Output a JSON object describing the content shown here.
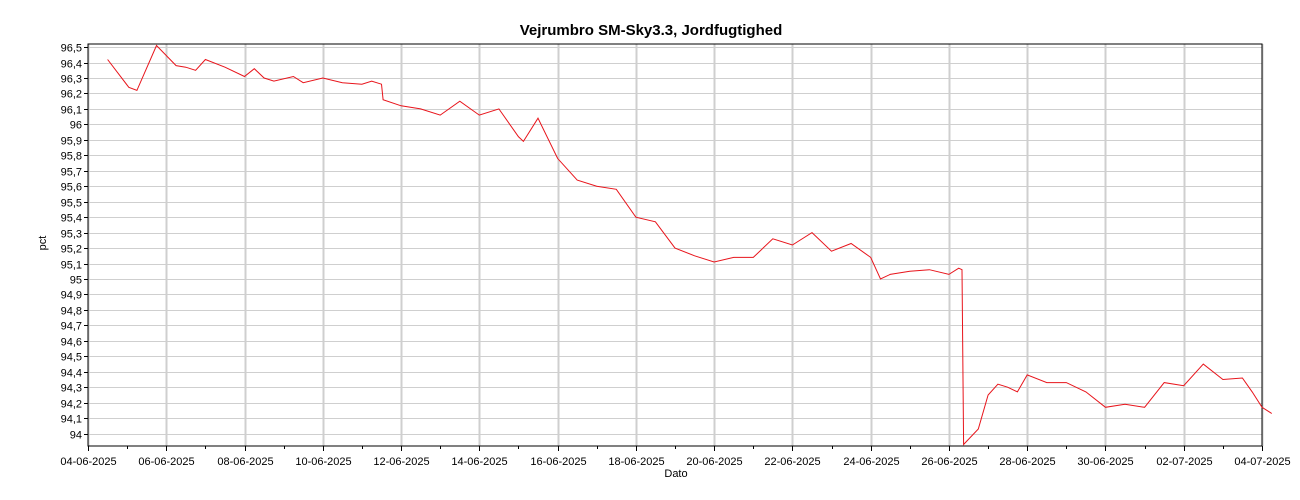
{
  "chart_data": {
    "type": "line",
    "title": "Vejrumbro SM-Sky3.3, Jordfugtighed",
    "xlabel": "Dato",
    "ylabel": "pct",
    "grid": true,
    "legend": "none",
    "colors": {
      "line": "#e8141b",
      "grid": "#cfcfcf",
      "axis": "#000000"
    },
    "xlim": [
      "2025-06-04",
      "2025-07-04"
    ],
    "ylim": [
      93.92,
      96.52
    ],
    "y_ticks": [
      94,
      94.1,
      94.2,
      94.3,
      94.4,
      94.5,
      94.6,
      94.7,
      94.8,
      94.9,
      95,
      95.1,
      95.2,
      95.3,
      95.4,
      95.5,
      95.6,
      95.7,
      95.8,
      95.9,
      96,
      96.1,
      96.2,
      96.3,
      96.4,
      96.5
    ],
    "y_tick_labels": [
      "94",
      "94,1",
      "94,2",
      "94,3",
      "94,4",
      "94,5",
      "94,6",
      "94,7",
      "94,8",
      "94,9",
      "95",
      "95,1",
      "95,2",
      "95,3",
      "95,4",
      "95,5",
      "95,6",
      "95,7",
      "95,8",
      "95,9",
      "96",
      "96,1",
      "96,2",
      "96,3",
      "96,4",
      "96,5"
    ],
    "x_ticks": [
      "2025-06-04",
      "2025-06-06",
      "2025-06-08",
      "2025-06-10",
      "2025-06-12",
      "2025-06-14",
      "2025-06-16",
      "2025-06-18",
      "2025-06-20",
      "2025-06-22",
      "2025-06-24",
      "2025-06-26",
      "2025-06-28",
      "2025-06-30",
      "2025-07-02",
      "2025-07-04"
    ],
    "x_tick_labels": [
      "04-06-2025",
      "06-06-2025",
      "08-06-2025",
      "10-06-2025",
      "12-06-2025",
      "14-06-2025",
      "16-06-2025",
      "18-06-2025",
      "20-06-2025",
      "22-06-2025",
      "24-06-2025",
      "26-06-2025",
      "28-06-2025",
      "30-06-2025",
      "02-07-2025",
      "04-07-2025"
    ],
    "series": [
      {
        "points": [
          [
            "2025-06-04 12:00",
            96.42
          ],
          [
            "2025-06-05 01:00",
            96.24
          ],
          [
            "2025-06-05 06:00",
            96.22
          ],
          [
            "2025-06-05 18:00",
            96.51
          ],
          [
            "2025-06-06 06:00",
            96.38
          ],
          [
            "2025-06-06 12:00",
            96.37
          ],
          [
            "2025-06-06 18:00",
            96.35
          ],
          [
            "2025-06-07 00:00",
            96.42
          ],
          [
            "2025-06-07 12:00",
            96.37
          ],
          [
            "2025-06-08 00:00",
            96.31
          ],
          [
            "2025-06-08 06:00",
            96.36
          ],
          [
            "2025-06-08 12:00",
            96.3
          ],
          [
            "2025-06-08 18:00",
            96.28
          ],
          [
            "2025-06-09 06:00",
            96.31
          ],
          [
            "2025-06-09 12:00",
            96.27
          ],
          [
            "2025-06-10 00:00",
            96.3
          ],
          [
            "2025-06-10 12:00",
            96.27
          ],
          [
            "2025-06-11 00:00",
            96.26
          ],
          [
            "2025-06-11 06:00",
            96.28
          ],
          [
            "2025-06-11 12:00",
            96.26
          ],
          [
            "2025-06-11 13:00",
            96.16
          ],
          [
            "2025-06-12 00:00",
            96.12
          ],
          [
            "2025-06-12 12:00",
            96.1
          ],
          [
            "2025-06-13 00:00",
            96.06
          ],
          [
            "2025-06-13 12:00",
            96.15
          ],
          [
            "2025-06-14 00:00",
            96.06
          ],
          [
            "2025-06-14 12:00",
            96.1
          ],
          [
            "2025-06-15 00:00",
            95.92
          ],
          [
            "2025-06-15 03:00",
            95.89
          ],
          [
            "2025-06-15 12:00",
            96.04
          ],
          [
            "2025-06-16 00:00",
            95.78
          ],
          [
            "2025-06-16 12:00",
            95.64
          ],
          [
            "2025-06-17 00:00",
            95.6
          ],
          [
            "2025-06-17 12:00",
            95.58
          ],
          [
            "2025-06-18 00:00",
            95.4
          ],
          [
            "2025-06-18 12:00",
            95.37
          ],
          [
            "2025-06-19 00:00",
            95.2
          ],
          [
            "2025-06-19 12:00",
            95.15
          ],
          [
            "2025-06-20 00:00",
            95.11
          ],
          [
            "2025-06-20 12:00",
            95.14
          ],
          [
            "2025-06-21 00:00",
            95.14
          ],
          [
            "2025-06-21 12:00",
            95.26
          ],
          [
            "2025-06-22 00:00",
            95.22
          ],
          [
            "2025-06-22 12:00",
            95.3
          ],
          [
            "2025-06-23 00:00",
            95.18
          ],
          [
            "2025-06-23 12:00",
            95.23
          ],
          [
            "2025-06-24 00:00",
            95.14
          ],
          [
            "2025-06-24 06:00",
            95.0
          ],
          [
            "2025-06-24 12:00",
            95.03
          ],
          [
            "2025-06-25 00:00",
            95.05
          ],
          [
            "2025-06-25 12:00",
            95.06
          ],
          [
            "2025-06-26 00:00",
            95.03
          ],
          [
            "2025-06-26 06:00",
            95.07
          ],
          [
            "2025-06-26 08:00",
            95.06
          ],
          [
            "2025-06-26 09:00",
            93.93
          ],
          [
            "2025-06-26 18:00",
            94.03
          ],
          [
            "2025-06-27 00:00",
            94.25
          ],
          [
            "2025-06-27 06:00",
            94.32
          ],
          [
            "2025-06-27 12:00",
            94.3
          ],
          [
            "2025-06-27 18:00",
            94.27
          ],
          [
            "2025-06-28 00:00",
            94.38
          ],
          [
            "2025-06-28 12:00",
            94.33
          ],
          [
            "2025-06-29 00:00",
            94.33
          ],
          [
            "2025-06-29 12:00",
            94.27
          ],
          [
            "2025-06-30 00:00",
            94.17
          ],
          [
            "2025-06-30 12:00",
            94.19
          ],
          [
            "2025-07-01 00:00",
            94.17
          ],
          [
            "2025-07-01 12:00",
            94.33
          ],
          [
            "2025-07-02 00:00",
            94.31
          ],
          [
            "2025-07-02 12:00",
            94.45
          ],
          [
            "2025-07-03 00:00",
            94.35
          ],
          [
            "2025-07-03 12:00",
            94.36
          ],
          [
            "2025-07-03 18:00",
            94.27
          ],
          [
            "2025-07-04 00:00",
            94.17
          ],
          [
            "2025-07-04 06:00",
            94.13
          ]
        ]
      }
    ]
  }
}
